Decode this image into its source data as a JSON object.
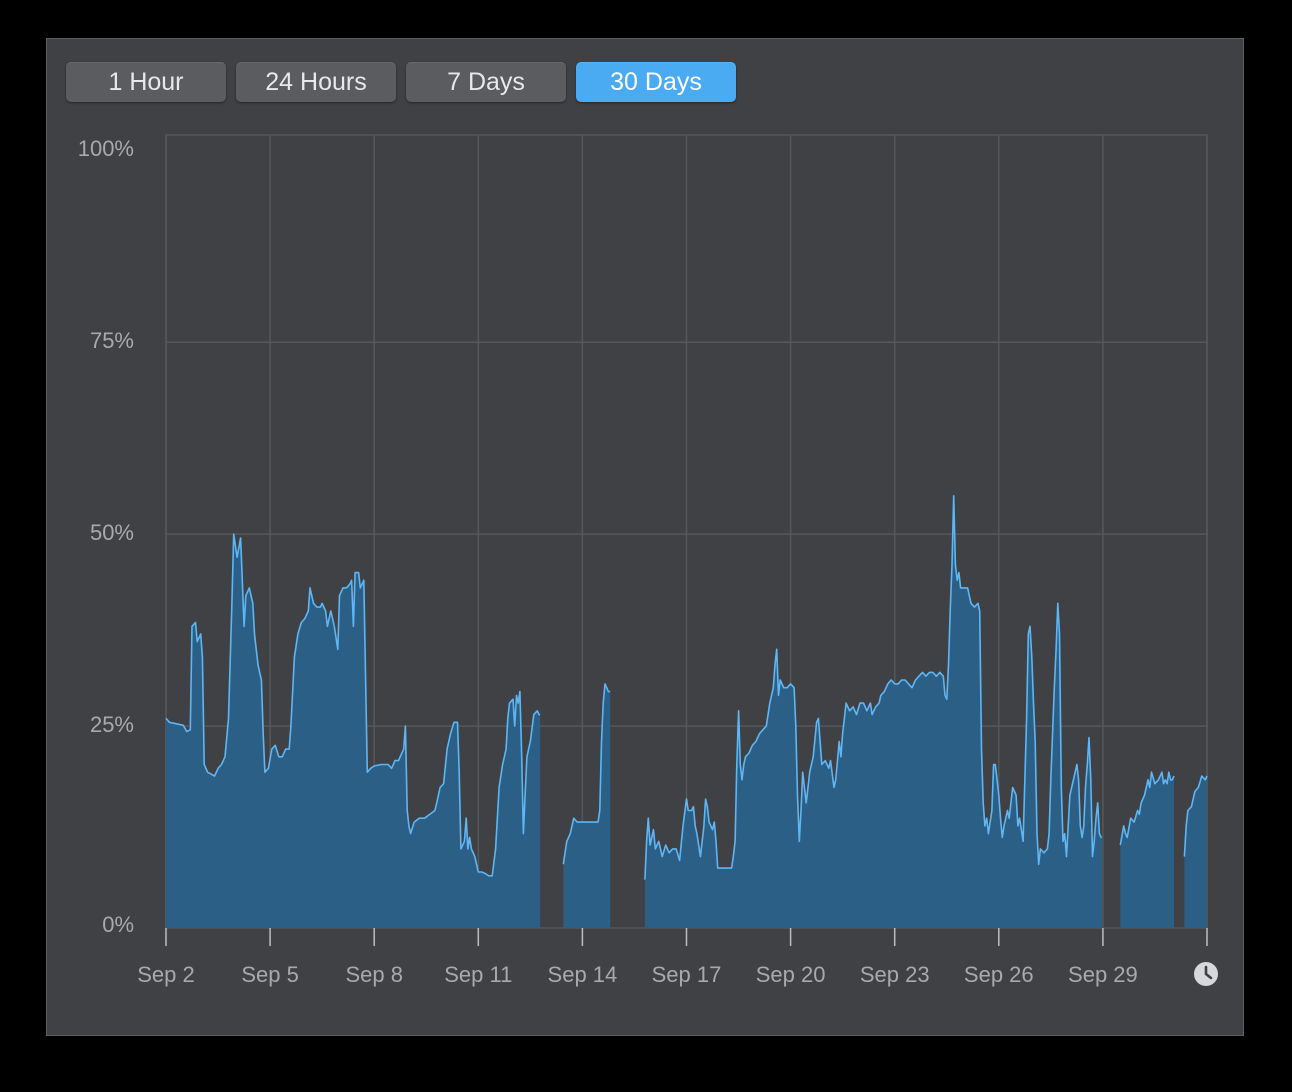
{
  "tabs": [
    {
      "label": "1 Hour",
      "active": false
    },
    {
      "label": "24 Hours",
      "active": false
    },
    {
      "label": "7 Days",
      "active": false
    },
    {
      "label": "30 Days",
      "active": true
    }
  ],
  "icons": {
    "history": "clock-icon"
  },
  "colors": {
    "line": "#5eb6f5",
    "fill": "#2c5f86",
    "active_tab": "#4aabf3",
    "grid": "#55575a"
  },
  "chart_data": {
    "type": "area",
    "x_unit": "day of September",
    "ylim": [
      0,
      100
    ],
    "y_ticks": [
      {
        "value": 100,
        "label": "100%"
      },
      {
        "value": 75,
        "label": "75%"
      },
      {
        "value": 50,
        "label": "50%"
      },
      {
        "value": 25,
        "label": "25%"
      },
      {
        "value": 0,
        "label": "0%"
      }
    ],
    "x_ticks": [
      {
        "day": 2,
        "label": "Sep 2"
      },
      {
        "day": 5,
        "label": "Sep 5"
      },
      {
        "day": 8,
        "label": "Sep 8"
      },
      {
        "day": 11,
        "label": "Sep 11"
      },
      {
        "day": 14,
        "label": "Sep 14"
      },
      {
        "day": 17,
        "label": "Sep 17"
      },
      {
        "day": 20,
        "label": "Sep 20"
      },
      {
        "day": 23,
        "label": "Sep 23"
      },
      {
        "day": 26,
        "label": "Sep 26"
      },
      {
        "day": 29,
        "label": "Sep 29"
      }
    ],
    "xlim": [
      2,
      32
    ],
    "grid": true,
    "segments": [
      [
        [
          2.0,
          26
        ],
        [
          2.1,
          25.5
        ],
        [
          2.3,
          25.3
        ],
        [
          2.5,
          25.1
        ],
        [
          2.6,
          24.3
        ],
        [
          2.7,
          24.5
        ],
        [
          2.75,
          38
        ],
        [
          2.85,
          38.5
        ],
        [
          2.9,
          36
        ],
        [
          3.0,
          37
        ],
        [
          3.05,
          34
        ],
        [
          3.1,
          20
        ],
        [
          3.2,
          19
        ],
        [
          3.4,
          18.5
        ],
        [
          3.5,
          19.5
        ],
        [
          3.6,
          20
        ],
        [
          3.7,
          21
        ],
        [
          3.8,
          26
        ],
        [
          3.9,
          41
        ],
        [
          3.95,
          50
        ],
        [
          4.05,
          47
        ],
        [
          4.15,
          49.5
        ],
        [
          4.25,
          38
        ],
        [
          4.3,
          42
        ],
        [
          4.4,
          43
        ],
        [
          4.5,
          41
        ],
        [
          4.55,
          37
        ],
        [
          4.65,
          33
        ],
        [
          4.7,
          32
        ],
        [
          4.75,
          31
        ],
        [
          4.8,
          24
        ],
        [
          4.85,
          19
        ],
        [
          4.95,
          19.5
        ],
        [
          5.05,
          22
        ],
        [
          5.15,
          22.5
        ],
        [
          5.25,
          21
        ],
        [
          5.35,
          21
        ],
        [
          5.45,
          22
        ],
        [
          5.55,
          22
        ],
        [
          5.6,
          25
        ],
        [
          5.7,
          34
        ],
        [
          5.8,
          37
        ],
        [
          5.9,
          38.5
        ],
        [
          6.0,
          39
        ],
        [
          6.1,
          40
        ],
        [
          6.15,
          43
        ],
        [
          6.25,
          41
        ],
        [
          6.35,
          40.5
        ],
        [
          6.45,
          40.5
        ],
        [
          6.5,
          41
        ],
        [
          6.6,
          40
        ],
        [
          6.65,
          38
        ],
        [
          6.75,
          40
        ],
        [
          6.85,
          38
        ],
        [
          6.95,
          35
        ],
        [
          7.0,
          42
        ],
        [
          7.1,
          43
        ],
        [
          7.2,
          43
        ],
        [
          7.3,
          43.5
        ],
        [
          7.35,
          44
        ],
        [
          7.4,
          38
        ],
        [
          7.45,
          45
        ],
        [
          7.55,
          45
        ],
        [
          7.6,
          43
        ],
        [
          7.7,
          44
        ],
        [
          7.8,
          19
        ],
        [
          7.9,
          19.5
        ],
        [
          8.0,
          19.8
        ],
        [
          8.2,
          20
        ],
        [
          8.4,
          20
        ],
        [
          8.5,
          19.5
        ],
        [
          8.6,
          20.5
        ],
        [
          8.7,
          20.5
        ],
        [
          8.75,
          21
        ],
        [
          8.85,
          22
        ],
        [
          8.9,
          25
        ],
        [
          8.95,
          14
        ],
        [
          9.0,
          12
        ],
        [
          9.05,
          11
        ],
        [
          9.15,
          12.5
        ],
        [
          9.3,
          13
        ],
        [
          9.45,
          13
        ],
        [
          9.6,
          13.5
        ],
        [
          9.75,
          14
        ],
        [
          9.8,
          15
        ],
        [
          9.9,
          17
        ],
        [
          10.0,
          17.5
        ],
        [
          10.1,
          22
        ],
        [
          10.2,
          24
        ],
        [
          10.3,
          25.5
        ],
        [
          10.4,
          25.5
        ],
        [
          10.45,
          19
        ],
        [
          10.5,
          9
        ],
        [
          10.6,
          10
        ],
        [
          10.65,
          13
        ],
        [
          10.7,
          9
        ],
        [
          10.75,
          10.5
        ],
        [
          10.8,
          9
        ],
        [
          10.9,
          8
        ],
        [
          11.0,
          6
        ],
        [
          11.1,
          6
        ],
        [
          11.2,
          5.8
        ],
        [
          11.3,
          5.5
        ],
        [
          11.4,
          5.5
        ],
        [
          11.5,
          9
        ],
        [
          11.6,
          17
        ],
        [
          11.7,
          20
        ],
        [
          11.8,
          22
        ],
        [
          11.85,
          26
        ],
        [
          11.9,
          28
        ],
        [
          12.0,
          28.5
        ],
        [
          12.05,
          25
        ],
        [
          12.1,
          29
        ],
        [
          12.15,
          28
        ],
        [
          12.2,
          29.5
        ],
        [
          12.25,
          21
        ],
        [
          12.3,
          11
        ],
        [
          12.35,
          16
        ],
        [
          12.4,
          21
        ],
        [
          12.5,
          23
        ],
        [
          12.6,
          26.5
        ],
        [
          12.7,
          27
        ],
        [
          12.75,
          26.5
        ],
        [
          12.78,
          26.5
        ]
      ],
      [
        [
          13.45,
          7
        ],
        [
          13.55,
          10
        ],
        [
          13.65,
          11
        ],
        [
          13.75,
          13
        ],
        [
          13.85,
          12.5
        ],
        [
          13.95,
          12.5
        ],
        [
          14.1,
          12.5
        ],
        [
          14.3,
          12.5
        ],
        [
          14.45,
          12.5
        ],
        [
          14.5,
          14
        ],
        [
          14.55,
          23
        ],
        [
          14.6,
          28
        ],
        [
          14.65,
          30.5
        ],
        [
          14.7,
          30
        ],
        [
          14.75,
          29.5
        ],
        [
          14.8,
          29.5
        ]
      ],
      [
        [
          15.8,
          5
        ],
        [
          15.85,
          10
        ],
        [
          15.9,
          13
        ],
        [
          15.95,
          9.5
        ],
        [
          16.05,
          11.5
        ],
        [
          16.1,
          9
        ],
        [
          16.2,
          10
        ],
        [
          16.3,
          8
        ],
        [
          16.4,
          9.5
        ],
        [
          16.5,
          8.5
        ],
        [
          16.6,
          9
        ],
        [
          16.7,
          9
        ],
        [
          16.8,
          7.5
        ],
        [
          16.9,
          12
        ],
        [
          17.0,
          15.5
        ],
        [
          17.05,
          14
        ],
        [
          17.15,
          14
        ],
        [
          17.2,
          14.5
        ],
        [
          17.25,
          12
        ],
        [
          17.3,
          11
        ],
        [
          17.4,
          8
        ],
        [
          17.5,
          12
        ],
        [
          17.55,
          15.5
        ],
        [
          17.6,
          14.5
        ],
        [
          17.65,
          12.5
        ],
        [
          17.75,
          11.5
        ],
        [
          17.8,
          12.5
        ],
        [
          17.85,
          10
        ],
        [
          17.9,
          6.5
        ],
        [
          18.0,
          6.5
        ],
        [
          18.1,
          6.5
        ],
        [
          18.2,
          6.5
        ],
        [
          18.3,
          6.5
        ],
        [
          18.35,
          8
        ],
        [
          18.4,
          10
        ],
        [
          18.45,
          20
        ],
        [
          18.5,
          27
        ],
        [
          18.55,
          20
        ],
        [
          18.6,
          18
        ],
        [
          18.65,
          20
        ],
        [
          18.7,
          21
        ],
        [
          18.8,
          21.5
        ],
        [
          18.9,
          22.5
        ],
        [
          19.0,
          23
        ],
        [
          19.1,
          24
        ],
        [
          19.2,
          24.5
        ],
        [
          19.3,
          25
        ],
        [
          19.4,
          28
        ],
        [
          19.5,
          30
        ],
        [
          19.55,
          33
        ],
        [
          19.6,
          35
        ],
        [
          19.65,
          29
        ],
        [
          19.7,
          31
        ],
        [
          19.8,
          30
        ],
        [
          19.9,
          30
        ],
        [
          20.0,
          30.5
        ],
        [
          20.1,
          30
        ],
        [
          20.15,
          25
        ],
        [
          20.2,
          16
        ],
        [
          20.25,
          10
        ],
        [
          20.3,
          14
        ],
        [
          20.35,
          19
        ],
        [
          20.45,
          15
        ],
        [
          20.55,
          19
        ],
        [
          20.65,
          21
        ],
        [
          20.75,
          25.5
        ],
        [
          20.8,
          26
        ],
        [
          20.85,
          23
        ],
        [
          20.9,
          20
        ],
        [
          21.0,
          20.5
        ],
        [
          21.1,
          19.5
        ],
        [
          21.15,
          20.5
        ],
        [
          21.25,
          17
        ],
        [
          21.3,
          18
        ],
        [
          21.4,
          23
        ],
        [
          21.45,
          21
        ],
        [
          21.5,
          24
        ],
        [
          21.6,
          28
        ],
        [
          21.7,
          27
        ],
        [
          21.8,
          27.5
        ],
        [
          21.9,
          26.5
        ],
        [
          22.0,
          28
        ],
        [
          22.1,
          28
        ],
        [
          22.2,
          27
        ],
        [
          22.3,
          28
        ],
        [
          22.35,
          26.5
        ],
        [
          22.45,
          27.5
        ],
        [
          22.55,
          28
        ],
        [
          22.6,
          29
        ],
        [
          22.7,
          29.5
        ],
        [
          22.8,
          30.5
        ],
        [
          22.9,
          31
        ],
        [
          23.0,
          30.5
        ],
        [
          23.1,
          30.5
        ],
        [
          23.2,
          31
        ],
        [
          23.3,
          31
        ],
        [
          23.4,
          30.5
        ],
        [
          23.5,
          30
        ],
        [
          23.6,
          31
        ],
        [
          23.7,
          31.5
        ],
        [
          23.8,
          32
        ],
        [
          23.9,
          31.5
        ],
        [
          24.0,
          32
        ],
        [
          24.1,
          32
        ],
        [
          24.2,
          31.5
        ],
        [
          24.3,
          32
        ],
        [
          24.4,
          31.5
        ],
        [
          24.45,
          29
        ],
        [
          24.5,
          28.5
        ],
        [
          24.55,
          33
        ],
        [
          24.6,
          40
        ],
        [
          24.65,
          46
        ],
        [
          24.7,
          55
        ],
        [
          24.75,
          46
        ],
        [
          24.8,
          44
        ],
        [
          24.85,
          45
        ],
        [
          24.9,
          43
        ],
        [
          25.0,
          43
        ],
        [
          25.1,
          43
        ],
        [
          25.2,
          41
        ],
        [
          25.3,
          40.5
        ],
        [
          25.4,
          41
        ],
        [
          25.45,
          40
        ],
        [
          25.5,
          22
        ],
        [
          25.55,
          15
        ],
        [
          25.6,
          12
        ],
        [
          25.65,
          13
        ],
        [
          25.7,
          11
        ],
        [
          25.8,
          14
        ],
        [
          25.85,
          20
        ],
        [
          25.9,
          20
        ],
        [
          25.95,
          18
        ],
        [
          26.0,
          16
        ],
        [
          26.05,
          13
        ],
        [
          26.1,
          10.5
        ],
        [
          26.15,
          12
        ],
        [
          26.25,
          14
        ],
        [
          26.3,
          13
        ],
        [
          26.35,
          15
        ],
        [
          26.4,
          17
        ],
        [
          26.5,
          16
        ],
        [
          26.55,
          12
        ],
        [
          26.6,
          13
        ],
        [
          26.7,
          10
        ],
        [
          26.8,
          26
        ],
        [
          26.85,
          37
        ],
        [
          26.9,
          38
        ],
        [
          26.95,
          34
        ],
        [
          27.0,
          28
        ],
        [
          27.05,
          23
        ],
        [
          27.1,
          11
        ],
        [
          27.15,
          7
        ],
        [
          27.2,
          9
        ],
        [
          27.3,
          8.5
        ],
        [
          27.4,
          9
        ],
        [
          27.45,
          11
        ],
        [
          27.5,
          18
        ],
        [
          27.6,
          30
        ],
        [
          27.65,
          35
        ],
        [
          27.7,
          41
        ],
        [
          27.75,
          37
        ],
        [
          27.8,
          17
        ],
        [
          27.85,
          10
        ],
        [
          27.9,
          11
        ],
        [
          27.95,
          8
        ],
        [
          28.0,
          12
        ],
        [
          28.05,
          16
        ],
        [
          28.15,
          18
        ],
        [
          28.25,
          20
        ],
        [
          28.3,
          18
        ],
        [
          28.35,
          12
        ],
        [
          28.4,
          10.5
        ],
        [
          28.45,
          12
        ],
        [
          28.5,
          17
        ],
        [
          28.55,
          20
        ],
        [
          28.6,
          23.5
        ],
        [
          28.65,
          18
        ],
        [
          28.7,
          8
        ],
        [
          28.75,
          10
        ],
        [
          28.8,
          13
        ],
        [
          28.85,
          15
        ],
        [
          28.9,
          11
        ],
        [
          28.95,
          10.5
        ],
        [
          28.97,
          10.5
        ]
      ],
      [
        [
          29.5,
          9.5
        ],
        [
          29.6,
          12
        ],
        [
          29.65,
          11
        ],
        [
          29.7,
          10.5
        ],
        [
          29.8,
          13
        ],
        [
          29.9,
          12.5
        ],
        [
          30.0,
          14
        ],
        [
          30.05,
          13.5
        ],
        [
          30.1,
          15
        ],
        [
          30.2,
          16
        ],
        [
          30.3,
          18
        ],
        [
          30.35,
          17
        ],
        [
          30.4,
          19
        ],
        [
          30.5,
          17.5
        ],
        [
          30.6,
          18
        ],
        [
          30.7,
          19
        ],
        [
          30.75,
          17.5
        ],
        [
          30.8,
          18
        ],
        [
          30.85,
          17.5
        ],
        [
          30.9,
          19
        ],
        [
          30.95,
          18
        ],
        [
          31.0,
          18
        ],
        [
          31.05,
          18.5
        ]
      ],
      [
        [
          31.35,
          8
        ],
        [
          31.4,
          12
        ],
        [
          31.45,
          14
        ],
        [
          31.55,
          14.5
        ],
        [
          31.65,
          16.5
        ],
        [
          31.75,
          17
        ],
        [
          31.85,
          18.5
        ],
        [
          31.95,
          18
        ],
        [
          32.0,
          18.5
        ]
      ]
    ]
  }
}
